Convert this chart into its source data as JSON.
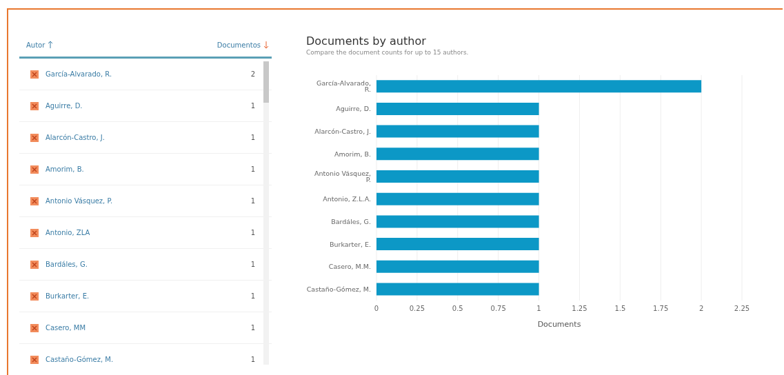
{
  "chart_data": [
    {
      "type": "other",
      "annotations": [
        "Autor",
        "Documentos"
      ],
      "categories": [
        "García-Alvarado, R.",
        "Aguirre, D.",
        "Alarcón-Castro, J.",
        "Amorim, B.",
        "Antonio Vásquez, P.",
        "Antonio, ZLA",
        "Bardáles, G.",
        "Burkarter, E.",
        "Casero, MM",
        "Castaño-Gómez, M."
      ],
      "values": [
        2,
        1,
        1,
        1,
        1,
        1,
        1,
        1,
        1,
        1
      ],
      "data_labels": true
    },
    {
      "type": "bar",
      "orientation": "horizontal",
      "title": "Documents by author",
      "subtitle": "Compare the document counts for up to 15 authors.",
      "xlabel": "Documents",
      "categories": [
        "García-Alvarado, R.",
        "Aguirre, D.",
        "Alarcón-Castro, J.",
        "Amorim, B.",
        "Antonio Vásquez, P.",
        "Antonio, Z.L.A.",
        "Bardáles, G.",
        "Burkarter, E.",
        "Casero, M.M.",
        "Castaño-Gómez, M."
      ],
      "values": [
        2,
        1,
        1,
        1,
        1,
        1,
        1,
        1,
        1,
        1
      ],
      "color": "#0c98c6",
      "xlim": [
        0,
        2.25
      ],
      "xticks": [
        0,
        0.25,
        0.5,
        0.75,
        1,
        1.25,
        1.5,
        1.75,
        2,
        2.25
      ],
      "grid": "x"
    }
  ]
}
